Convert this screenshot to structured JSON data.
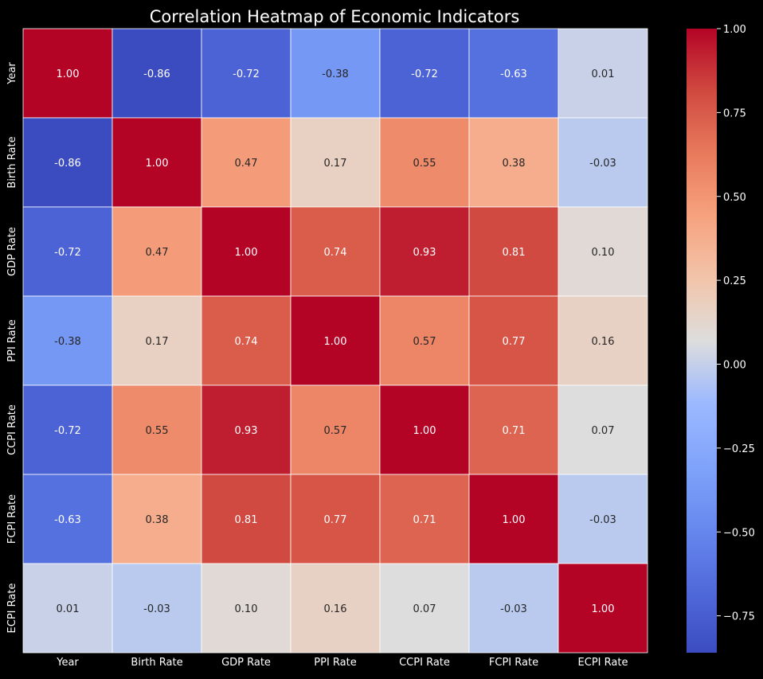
{
  "chart_data": {
    "type": "heatmap",
    "title": "Correlation Heatmap of Economic Indicators",
    "xlabel": "",
    "ylabel": "",
    "categories_x": [
      "Year",
      "Birth Rate",
      "GDP Rate",
      "PPI Rate",
      "CCPI Rate",
      "FCPI Rate",
      "ECPI Rate"
    ],
    "categories_y": [
      "Year",
      "Birth Rate",
      "GDP Rate",
      "PPI Rate",
      "CCPI Rate",
      "FCPI Rate",
      "ECPI Rate"
    ],
    "values": [
      [
        1.0,
        -0.86,
        -0.72,
        -0.38,
        -0.72,
        -0.63,
        0.01
      ],
      [
        -0.86,
        1.0,
        0.47,
        0.17,
        0.55,
        0.38,
        -0.03
      ],
      [
        -0.72,
        0.47,
        1.0,
        0.74,
        0.93,
        0.81,
        0.1
      ],
      [
        -0.38,
        0.17,
        0.74,
        1.0,
        0.57,
        0.77,
        0.16
      ],
      [
        -0.72,
        0.55,
        0.93,
        0.57,
        1.0,
        0.71,
        0.07
      ],
      [
        -0.63,
        0.38,
        0.81,
        0.77,
        0.71,
        1.0,
        -0.03
      ],
      [
        0.01,
        -0.03,
        0.1,
        0.16,
        0.07,
        -0.03,
        1.0
      ]
    ],
    "value_format": "0.00",
    "colormap": "coolwarm",
    "color_range": [
      -0.86,
      1.0
    ],
    "colorbar_ticks": [
      "1.00",
      "0.75",
      "0.50",
      "0.25",
      "0.00",
      "−0.25",
      "−0.50",
      "−0.75"
    ],
    "colorbar_tick_values": [
      1.0,
      0.75,
      0.5,
      0.25,
      0.0,
      -0.25,
      -0.5,
      -0.75
    ],
    "legend": "right",
    "grid": true,
    "colors": {
      "background": "#000000",
      "text": "#ffffff",
      "cell_border": "#ffffff"
    }
  }
}
